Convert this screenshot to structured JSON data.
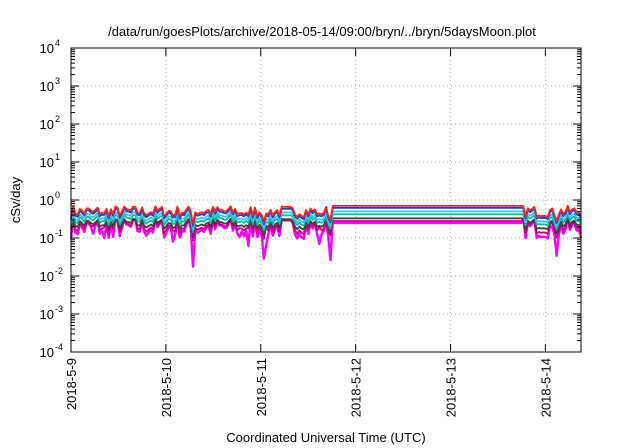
{
  "chart_data": {
    "type": "line",
    "title": "/data/run/goesPlots/archive/2018-05-14/09:00/bryn/../bryn/5daysMoon.plot",
    "xlabel": "Coordinated Universal Time (UTC)",
    "ylabel": "cSv/day",
    "yscale": "log",
    "ylim": [
      0.0001,
      10000
    ],
    "y_ticks": [
      {
        "base": "10",
        "exp": "4",
        "value": 10000
      },
      {
        "base": "10",
        "exp": "3",
        "value": 1000
      },
      {
        "base": "10",
        "exp": "2",
        "value": 100
      },
      {
        "base": "10",
        "exp": "1",
        "value": 10
      },
      {
        "base": "10",
        "exp": "0",
        "value": 1
      },
      {
        "base": "10",
        "exp": "-1",
        "value": 0.1
      },
      {
        "base": "10",
        "exp": "-2",
        "value": 0.01
      },
      {
        "base": "10",
        "exp": "-3",
        "value": 0.001
      },
      {
        "base": "10",
        "exp": "-4",
        "value": 0.0001
      }
    ],
    "xlim": [
      "2018-05-09",
      "2018-05-14 09:00"
    ],
    "x_ticks": [
      {
        "label": "2018-5-9",
        "value": "2018-05-09"
      },
      {
        "label": "2018-5-10",
        "value": "2018-05-10"
      },
      {
        "label": "2018-5-11",
        "value": "2018-05-11"
      },
      {
        "label": "2018-5-12",
        "value": "2018-05-12"
      },
      {
        "label": "2018-5-13",
        "value": "2018-05-13"
      },
      {
        "label": "2018-5-14",
        "value": "2018-05-14"
      }
    ],
    "grid": true,
    "series": [
      {
        "color": "#ff00ff",
        "flat_value": 0.25
      },
      {
        "color": "#c00080",
        "flat_value": 0.28
      },
      {
        "color": "#404040",
        "flat_value": 0.33
      },
      {
        "color": "#00c0a0",
        "flat_value": 0.42
      },
      {
        "color": "#40c0ff",
        "flat_value": 0.5
      },
      {
        "color": "#2040c0",
        "flat_value": 0.62
      },
      {
        "color": "#ff2020",
        "flat_value": 0.7
      }
    ],
    "flat_segment": [
      "2018-05-11 18:00",
      "2018-05-13 18:00"
    ]
  }
}
